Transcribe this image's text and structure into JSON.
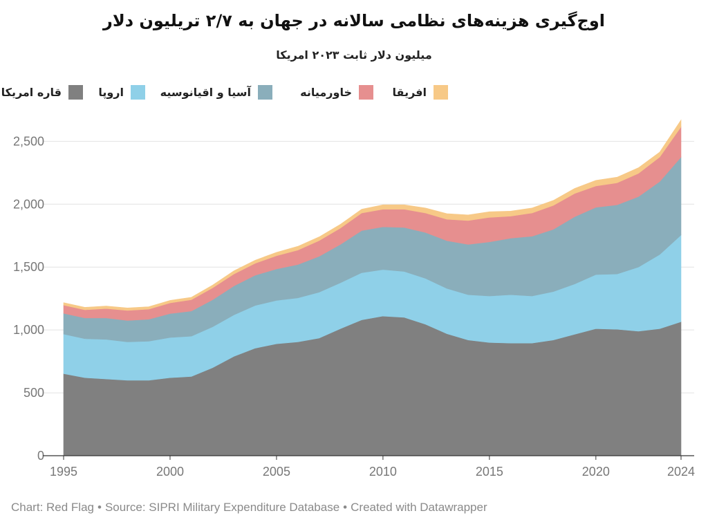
{
  "chart_data": {
    "type": "area",
    "stacked": true,
    "title": "اوج‌گیری هزینه‌های نظامی سالانه در جهان به ۲/۷ تریلیون دلار",
    "subtitle": "میلیون دلار ثابت ۲۰۲۳ امریکا",
    "x": [
      1995,
      1996,
      1997,
      1998,
      1999,
      2000,
      2001,
      2002,
      2003,
      2004,
      2005,
      2006,
      2007,
      2008,
      2009,
      2010,
      2011,
      2012,
      2013,
      2014,
      2015,
      2016,
      2017,
      2018,
      2019,
      2020,
      2021,
      2022,
      2023,
      2024
    ],
    "x_ticks": [
      "1995",
      "2000",
      "2005",
      "2010",
      "2015",
      "2020",
      "2024"
    ],
    "y_ticks": [
      "0",
      "500",
      "1,000",
      "1,500",
      "2,000",
      "2,500"
    ],
    "ylim": [
      0,
      2700
    ],
    "grid": true,
    "legend_position": "top",
    "series": [
      {
        "name": "قاره امریکا",
        "color": "#808080",
        "values": [
          652,
          620,
          610,
          600,
          600,
          620,
          630,
          700,
          790,
          855,
          890,
          905,
          935,
          1010,
          1080,
          1110,
          1100,
          1045,
          970,
          920,
          900,
          895,
          895,
          920,
          965,
          1010,
          1005,
          990,
          1010,
          1065
        ]
      },
      {
        "name": "اروپا",
        "color": "#8fd0e8",
        "values": [
          315,
          310,
          315,
          305,
          310,
          320,
          320,
          325,
          330,
          340,
          345,
          350,
          365,
          365,
          375,
          370,
          365,
          365,
          360,
          360,
          370,
          385,
          375,
          385,
          400,
          430,
          440,
          510,
          590,
          690
        ]
      },
      {
        "name": "آسیا و اقیانوسیه",
        "color": "#8aaebb",
        "values": [
          165,
          165,
          170,
          170,
          175,
          190,
          200,
          215,
          230,
          240,
          250,
          265,
          285,
          305,
          335,
          340,
          350,
          365,
          380,
          400,
          430,
          450,
          475,
          495,
          535,
          535,
          550,
          560,
          580,
          620
        ]
      },
      {
        "name": "خاورمیانه",
        "color": "#e68f8f",
        "values": [
          65,
          65,
          75,
          80,
          80,
          85,
          90,
          95,
          95,
          95,
          105,
          115,
          125,
          130,
          140,
          140,
          145,
          155,
          170,
          190,
          195,
          175,
          185,
          190,
          185,
          170,
          175,
          185,
          195,
          240
        ]
      },
      {
        "name": "افریقا",
        "color": "#f7c987",
        "values": [
          20,
          20,
          20,
          20,
          20,
          20,
          20,
          22,
          25,
          25,
          27,
          30,
          30,
          30,
          30,
          35,
          35,
          40,
          45,
          45,
          45,
          40,
          40,
          40,
          40,
          45,
          45,
          45,
          40,
          55
        ]
      }
    ]
  },
  "footer": {
    "chart": "Chart: Red Flag",
    "source": "Source: SIPRI Military Expenditure Database",
    "created": "Created with Datawrapper",
    "separator": "•"
  }
}
